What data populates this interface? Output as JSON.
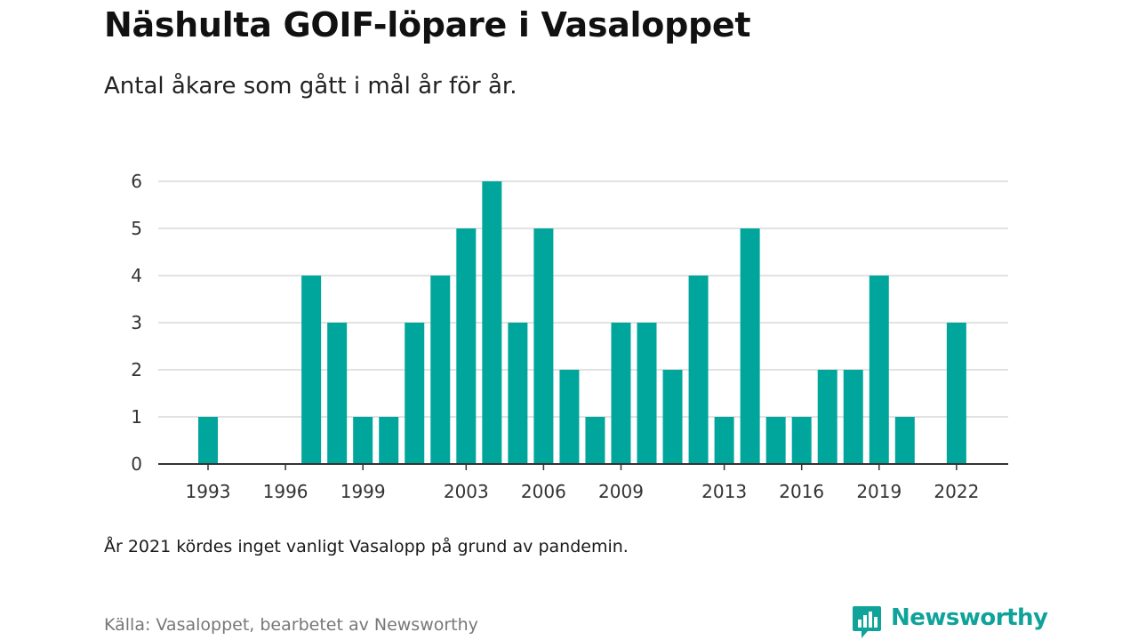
{
  "header": {
    "title": "Näshulta GOIF-löpare i Vasaloppet",
    "subtitle": "Antal åkare som gått i mål år för år."
  },
  "footer": {
    "note": "År 2021 kördes inget vanligt Vasalopp på grund av pandemin.",
    "source": "Källa: Vasaloppet, bearbetet av Newsworthy",
    "brand": "Newsworthy"
  },
  "colors": {
    "bar": "#00a69c",
    "grid": "#d9d9d9",
    "axis": "#333333",
    "brand": "#0fa39a"
  },
  "chart_data": {
    "type": "bar",
    "title": "Näshulta GOIF-löpare i Vasaloppet",
    "subtitle": "Antal åkare som gått i mål år för år.",
    "xlabel": "",
    "ylabel": "",
    "ylim": [
      0,
      6
    ],
    "yticks": [
      0,
      1,
      2,
      3,
      4,
      5,
      6
    ],
    "xtick_labels": [
      "1993",
      "1996",
      "1999",
      "2003",
      "2006",
      "2009",
      "2013",
      "2016",
      "2019",
      "2022"
    ],
    "grid": true,
    "legend": "none",
    "x": [
      1993,
      1997,
      1998,
      1999,
      2000,
      2001,
      2002,
      2003,
      2004,
      2005,
      2006,
      2007,
      2008,
      2009,
      2010,
      2011,
      2012,
      2013,
      2014,
      2015,
      2016,
      2017,
      2018,
      2019,
      2020,
      2022
    ],
    "values": [
      1,
      4,
      3,
      1,
      1,
      3,
      4,
      5,
      6,
      3,
      5,
      2,
      1,
      3,
      3,
      2,
      4,
      1,
      5,
      1,
      1,
      2,
      2,
      4,
      1,
      3
    ]
  }
}
